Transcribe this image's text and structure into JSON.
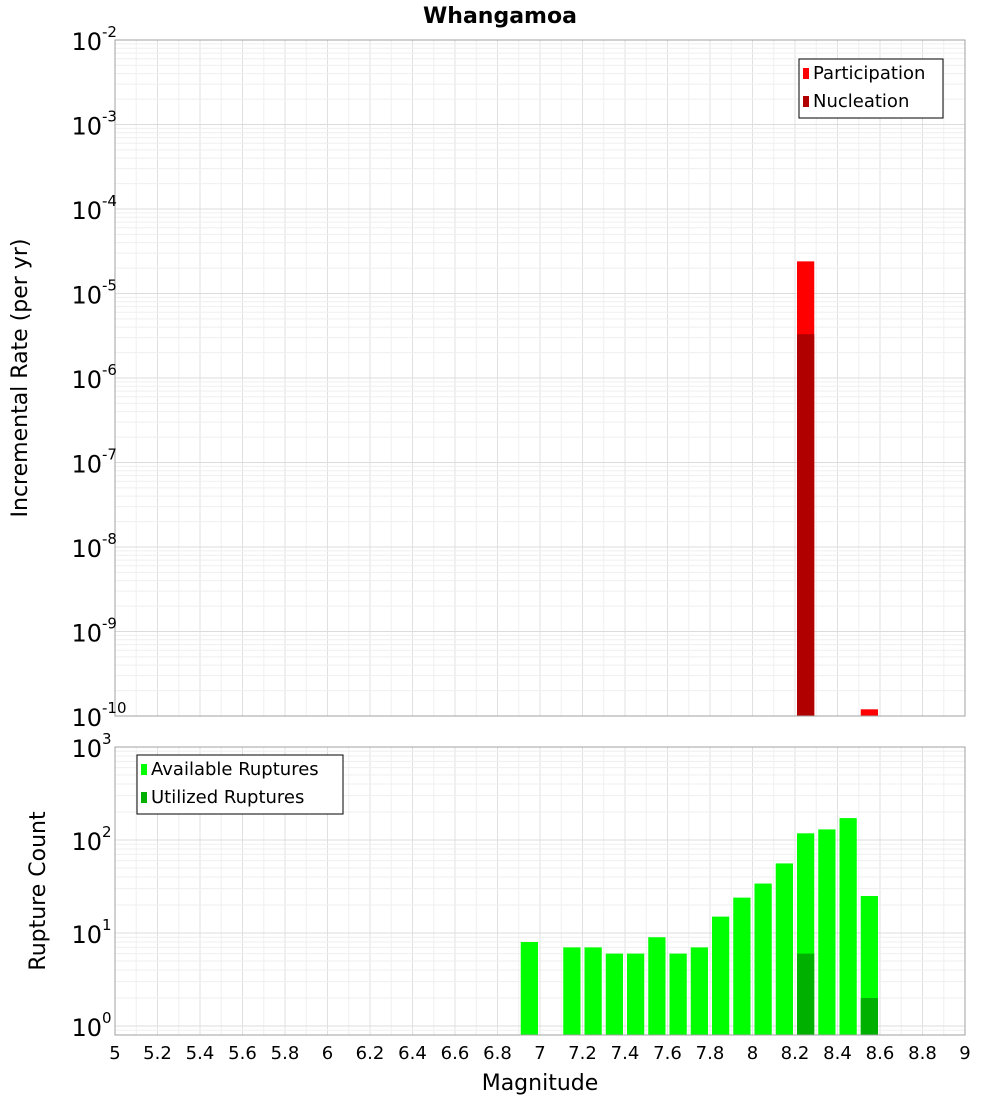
{
  "chart_data": {
    "type": "bar",
    "title": "Whangamoa",
    "xlabel": "Magnitude",
    "xlim": [
      5,
      9
    ],
    "x_ticks": [
      "5",
      "5.2",
      "5.4",
      "5.6",
      "5.8",
      "6",
      "6.2",
      "6.4",
      "6.6",
      "6.8",
      "7",
      "7.2",
      "7.4",
      "7.6",
      "7.8",
      "8",
      "8.2",
      "8.4",
      "8.6",
      "8.8",
      "9"
    ],
    "bin_width": 0.1,
    "panels": [
      {
        "name": "rate",
        "ylabel": "Incremental Rate (per yr)",
        "yscale": "log",
        "ylim": [
          1e-10,
          0.01
        ],
        "y_ticks": [
          {
            "base": "10",
            "exp": "-10"
          },
          {
            "base": "10",
            "exp": "-9"
          },
          {
            "base": "10",
            "exp": "-8"
          },
          {
            "base": "10",
            "exp": "-7"
          },
          {
            "base": "10",
            "exp": "-6"
          },
          {
            "base": "10",
            "exp": "-5"
          },
          {
            "base": "10",
            "exp": "-4"
          },
          {
            "base": "10",
            "exp": "-3"
          },
          {
            "base": "10",
            "exp": "-2"
          }
        ],
        "legend_position": "top-right",
        "series": [
          {
            "name": "Participation",
            "color": "#ff0000",
            "points": [
              {
                "x": 8.25,
                "y": 2.4e-05
              },
              {
                "x": 8.55,
                "y": 1.2e-10
              }
            ]
          },
          {
            "name": "Nucleation",
            "color": "#b00000",
            "points": [
              {
                "x": 8.25,
                "y": 3.3e-06
              }
            ]
          }
        ]
      },
      {
        "name": "count",
        "ylabel": "Rupture Count",
        "yscale": "log",
        "ylim": [
          0.8,
          1000
        ],
        "y_ticks": [
          {
            "base": "10",
            "exp": "0"
          },
          {
            "base": "10",
            "exp": "1"
          },
          {
            "base": "10",
            "exp": "2"
          },
          {
            "base": "10",
            "exp": "3"
          }
        ],
        "legend_position": "top-left",
        "series": [
          {
            "name": "Available Ruptures",
            "color": "#00ff00",
            "points": [
              {
                "x": 6.95,
                "y": 8
              },
              {
                "x": 7.15,
                "y": 7
              },
              {
                "x": 7.25,
                "y": 7
              },
              {
                "x": 7.35,
                "y": 6
              },
              {
                "x": 7.45,
                "y": 6
              },
              {
                "x": 7.55,
                "y": 9
              },
              {
                "x": 7.65,
                "y": 6
              },
              {
                "x": 7.75,
                "y": 7
              },
              {
                "x": 7.85,
                "y": 15
              },
              {
                "x": 7.95,
                "y": 24
              },
              {
                "x": 8.05,
                "y": 34
              },
              {
                "x": 8.15,
                "y": 56
              },
              {
                "x": 8.25,
                "y": 118
              },
              {
                "x": 8.35,
                "y": 130
              },
              {
                "x": 8.45,
                "y": 172
              },
              {
                "x": 8.55,
                "y": 25
              }
            ]
          },
          {
            "name": "Utilized Ruptures",
            "color": "#00b000",
            "points": [
              {
                "x": 8.25,
                "y": 6
              },
              {
                "x": 8.55,
                "y": 2
              }
            ]
          }
        ]
      }
    ]
  }
}
